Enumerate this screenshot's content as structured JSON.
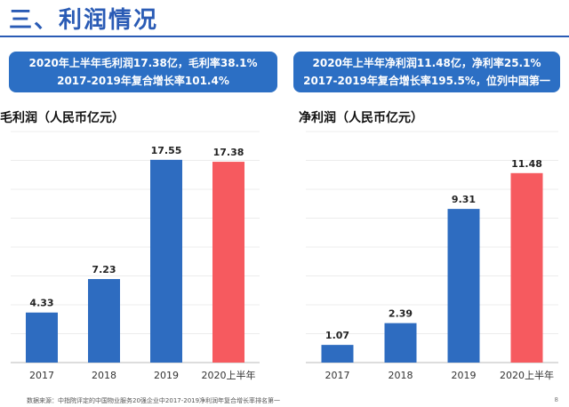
{
  "header": {
    "title": "三、利润情况"
  },
  "callouts": {
    "left": {
      "line1": "2020年上半年毛利润17.38亿，毛利率38.1%",
      "line2": "2017-2019年复合增长率101.4%"
    },
    "right": {
      "line1": "2020年上半年净利润11.48亿，净利率25.1%",
      "line2": "2017-2019年复合增长率195.5%，位列中国第一"
    }
  },
  "footer": {
    "source": "数据来源：中指院评定的中国物业服务20强企业中2017-2019净利润年复合增长率排名第一",
    "page": "8"
  },
  "colors": {
    "bar_blue": "#2e6cc0",
    "bar_red": "#f65a5f",
    "title_blue": "#2a5bb5"
  },
  "chart_data": [
    {
      "type": "bar",
      "title": "毛利润（人民币亿元）",
      "categories": [
        "2017",
        "2018",
        "2019",
        "2020上半年"
      ],
      "values": [
        4.33,
        7.23,
        17.55,
        17.38
      ],
      "value_labels": [
        "4.33",
        "7.23",
        "17.55",
        "17.38"
      ],
      "highlight_index": 3,
      "ylim": [
        0,
        20
      ],
      "grid": true
    },
    {
      "type": "bar",
      "title": "净利润（人民币亿元）",
      "categories": [
        "2017",
        "2018",
        "2019",
        "2020上半年"
      ],
      "values": [
        1.07,
        2.39,
        9.31,
        11.48
      ],
      "value_labels": [
        "1.07",
        "2.39",
        "9.31",
        "11.48"
      ],
      "highlight_index": 3,
      "ylim": [
        0,
        14
      ],
      "grid": true
    }
  ]
}
